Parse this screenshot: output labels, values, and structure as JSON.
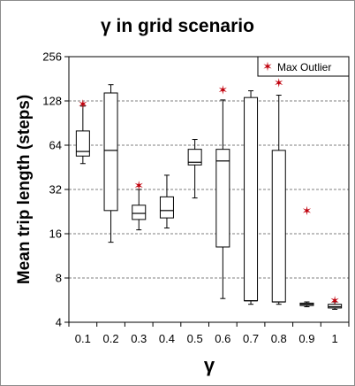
{
  "chart_data": {
    "type": "box",
    "title": "γ in grid scenario",
    "xlabel": "γ",
    "ylabel": "Mean trip length (steps)",
    "y_scale": "log2",
    "ylim": [
      4,
      256
    ],
    "yticks": [
      4,
      8,
      16,
      32,
      64,
      128,
      256
    ],
    "ytick_labels": [
      "4",
      "8",
      "16",
      "32",
      "64",
      "128",
      "256"
    ],
    "grid": "horizontal dashed",
    "legend": {
      "position": "top-right",
      "entries": [
        "Max Outlier"
      ]
    },
    "categories": [
      "0.1",
      "0.2",
      "0.3",
      "0.4",
      "0.5",
      "0.6",
      "0.7",
      "0.8",
      "0.9",
      "1"
    ],
    "boxes": [
      {
        "x": "0.1",
        "min": 48,
        "q1": 54,
        "median": 58,
        "q3": 80,
        "max": 118,
        "outlier": 122
      },
      {
        "x": "0.2",
        "min": 14,
        "q1": 23,
        "median": 59,
        "q3": 145,
        "max": 165,
        "outlier": null
      },
      {
        "x": "0.3",
        "min": 17,
        "q1": 20,
        "median": 22,
        "q3": 25,
        "max": 32,
        "outlier": 34
      },
      {
        "x": "0.4",
        "min": 17.5,
        "q1": 20.5,
        "median": 23,
        "q3": 28.5,
        "max": 40,
        "outlier": null
      },
      {
        "x": "0.5",
        "min": 28,
        "q1": 47,
        "median": 49,
        "q3": 60,
        "max": 70,
        "outlier": null
      },
      {
        "x": "0.6",
        "min": 5.8,
        "q1": 13,
        "median": 50,
        "q3": 60,
        "max": 130,
        "outlier": 152
      },
      {
        "x": "0.7",
        "min": 5.3,
        "q1": 5.6,
        "median": 5.6,
        "q3": 135,
        "max": 150,
        "outlier": null
      },
      {
        "x": "0.8",
        "min": 5.3,
        "q1": 5.5,
        "median": 5.5,
        "q3": 59,
        "max": 140,
        "outlier": 170
      },
      {
        "x": "0.9",
        "min": 5.1,
        "q1": 5.2,
        "median": 5.3,
        "q3": 5.4,
        "max": 5.5,
        "outlier": 23
      },
      {
        "x": "1",
        "min": 4.9,
        "q1": 5.0,
        "median": 5.1,
        "q3": 5.3,
        "max": 5.5,
        "outlier": 5.6
      }
    ],
    "colors": {
      "box": "#000000",
      "outlier": "#c0000c",
      "grid": "#7f7f7f",
      "frame": "#000000"
    }
  }
}
